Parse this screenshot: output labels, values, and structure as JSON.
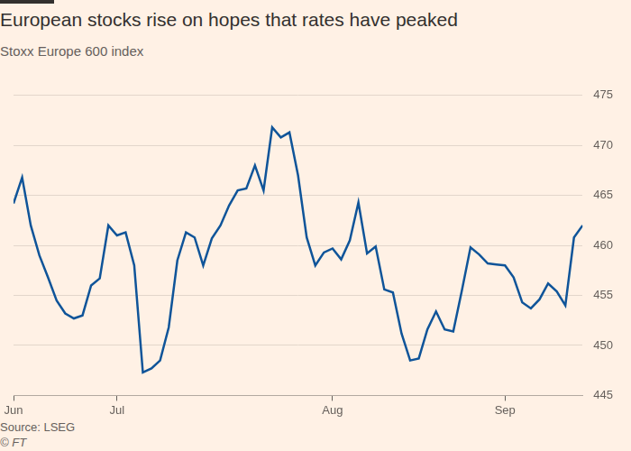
{
  "chart_data": {
    "type": "line",
    "title": "European stocks rise on hopes that rates have peaked",
    "subtitle": "Stoxx Europe 600 index",
    "source": "Source: LSEG",
    "credit": "© FT",
    "categories": [
      "Jun",
      null,
      null,
      null,
      null,
      null,
      null,
      null,
      null,
      null,
      null,
      null,
      "Jul",
      null,
      null,
      null,
      null,
      null,
      null,
      null,
      null,
      null,
      null,
      null,
      null,
      null,
      null,
      null,
      null,
      null,
      null,
      null,
      null,
      null,
      null,
      null,
      null,
      "Aug",
      null,
      null,
      null,
      null,
      null,
      null,
      null,
      null,
      null,
      null,
      null,
      null,
      null,
      null,
      null,
      null,
      null,
      null,
      null,
      "Sep",
      null,
      null,
      null,
      null,
      null,
      null,
      null,
      null,
      null
    ],
    "values": [
      464.2,
      466.8,
      462,
      459,
      456.8,
      454.5,
      453.2,
      452.7,
      453,
      456,
      456.7,
      462,
      461,
      461.3,
      458,
      447.3,
      447.7,
      448.5,
      451.8,
      458.5,
      461.3,
      460.8,
      458,
      460.7,
      462,
      464,
      465.5,
      465.7,
      468,
      465.5,
      471.8,
      470.8,
      471.3,
      467,
      460.8,
      458,
      459.3,
      459.7,
      458.6,
      460.5,
      464.3,
      459.2,
      459.9,
      455.6,
      455.3,
      451.2,
      448.5,
      448.7,
      451.6,
      453.4,
      451.6,
      451.4,
      455.5,
      459.8,
      459.1,
      458.2,
      458.1,
      458,
      456.8,
      454.3,
      453.7,
      454.6,
      456.2,
      455.4,
      454,
      460.8,
      462
    ],
    "color": "#0f5499",
    "ylim": [
      445,
      475
    ],
    "yticks": [
      445,
      450,
      455,
      460,
      465,
      470,
      475
    ],
    "grid": true
  }
}
